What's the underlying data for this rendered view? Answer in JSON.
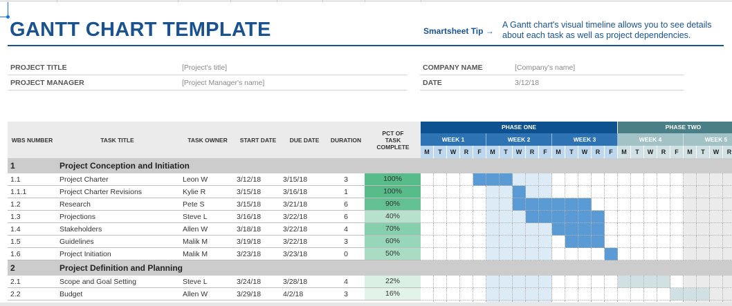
{
  "header": {
    "title": "GANTT CHART TEMPLATE",
    "tip_label": "Smartsheet Tip →",
    "tip_text": "A Gantt chart's visual timeline allows you to see details about each task as well as project dependencies."
  },
  "project_info": {
    "project_title_label": "PROJECT TITLE",
    "project_title_value": "[Project's title]",
    "project_manager_label": "PROJECT MANAGER",
    "project_manager_value": "[Project Manager's name]",
    "company_name_label": "COMPANY NAME",
    "company_name_value": "[Company's name]",
    "date_label": "DATE",
    "date_value": "3/12/18"
  },
  "columns": {
    "wbs": "WBS NUMBER",
    "task": "TASK TITLE",
    "owner": "TASK OWNER",
    "start": "START DATE",
    "due": "DUE DATE",
    "duration": "DURATION",
    "pct": "PCT OF TASK COMPLETE"
  },
  "timeline": {
    "phases": [
      {
        "label": "PHASE ONE",
        "weeks": 3,
        "color": "#0e5190",
        "week_color": "#2e74b5",
        "day_color": "#bdd7ee"
      },
      {
        "label": "PHASE TWO",
        "weeks": 2,
        "color": "#4a7f87",
        "week_color": "#a3c2c6",
        "day_color": "#d0e0e3"
      }
    ],
    "weeks": [
      "WEEK 1",
      "WEEK 2",
      "WEEK 3",
      "WEEK 4",
      "WEEK 5"
    ],
    "days": [
      "M",
      "T",
      "W",
      "R",
      "F"
    ],
    "highlight_week_index": 1,
    "shaded_week_index": 4,
    "bar_color_phase_one": "#5b9bd5",
    "bar_color_phase_two": "#d0e0e3",
    "highlight_color": "#ddebf7",
    "shaded_color": "#ebebeb"
  },
  "sections": [
    {
      "wbs": "1",
      "title": "Project Conception and Initiation",
      "tasks": [
        {
          "wbs": "1.1",
          "title": "Project Charter",
          "owner": "Leon W",
          "start": "3/12/18",
          "due": "3/15/18",
          "duration": "3",
          "pct": "100%",
          "pct_color": "#57bb8a",
          "bar_start": 4,
          "bar_len": 3,
          "phase": 1
        },
        {
          "wbs": "1.1.1",
          "title": "Project Charter Revisions",
          "owner": "Kylie R",
          "start": "3/15/18",
          "due": "3/16/18",
          "duration": "1",
          "pct": "100%",
          "pct_color": "#57bb8a",
          "bar_start": 7,
          "bar_len": 1,
          "phase": 1
        },
        {
          "wbs": "1.2",
          "title": "Research",
          "owner": "Pete S",
          "start": "3/15/18",
          "due": "3/21/18",
          "duration": "6",
          "pct": "90%",
          "pct_color": "#63c092",
          "bar_start": 7,
          "bar_len": 6,
          "phase": 1
        },
        {
          "wbs": "1.3",
          "title": "Projections",
          "owner": "Steve L",
          "start": "3/16/18",
          "due": "3/22/18",
          "duration": "6",
          "pct": "40%",
          "pct_color": "#b7e1cd",
          "bar_start": 8,
          "bar_len": 6,
          "phase": 1
        },
        {
          "wbs": "1.4",
          "title": "Stakeholders",
          "owner": "Allen W",
          "start": "3/18/18",
          "due": "3/22/18",
          "duration": "4",
          "pct": "70%",
          "pct_color": "#86cfac",
          "bar_start": 10,
          "bar_len": 4,
          "phase": 1
        },
        {
          "wbs": "1.5",
          "title": "Guidelines",
          "owner": "Malik M",
          "start": "3/19/18",
          "due": "3/22/18",
          "duration": "3",
          "pct": "60%",
          "pct_color": "#97d6b8",
          "bar_start": 11,
          "bar_len": 3,
          "phase": 1
        },
        {
          "wbs": "1.6",
          "title": "Project Initiation",
          "owner": "Malik M",
          "start": "3/23/18",
          "due": "3/23/18",
          "duration": "0",
          "pct": "50%",
          "pct_color": "#a8dcc3",
          "bar_start": 14,
          "bar_len": 1,
          "phase": 1
        }
      ]
    },
    {
      "wbs": "2",
      "title": "Project Definition and Planning",
      "tasks": [
        {
          "wbs": "2.1",
          "title": "Scope and Goal Setting",
          "owner": "Steve L",
          "start": "3/24/18",
          "due": "3/28/18",
          "duration": "4",
          "pct": "22%",
          "pct_color": "#d9efe3",
          "bar_start": 15,
          "bar_len": 4,
          "phase": 2
        },
        {
          "wbs": "2.2",
          "title": "Budget",
          "owner": "Allen W",
          "start": "3/29/18",
          "due": "4/2/18",
          "duration": "3",
          "pct": "16%",
          "pct_color": "#e2f3ea",
          "bar_start": 19,
          "bar_len": 3,
          "phase": 2
        }
      ]
    }
  ]
}
